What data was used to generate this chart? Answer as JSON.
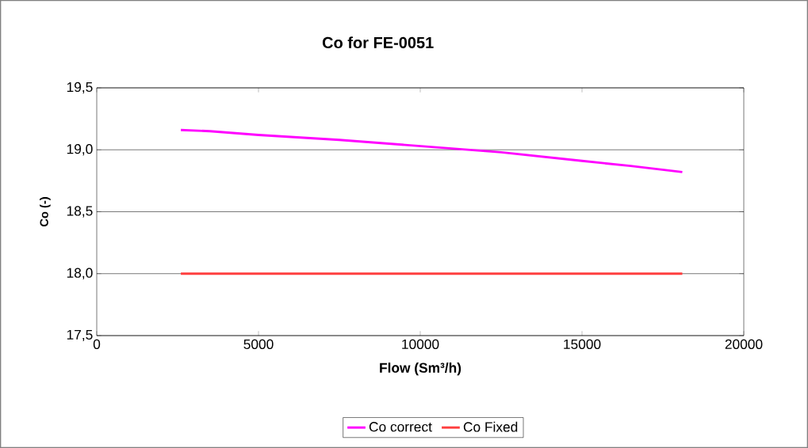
{
  "chart_data": {
    "type": "line",
    "title": "Co for FE-0051",
    "xlabel": "Flow (Sm³/h)",
    "ylabel": "Co (-)",
    "x": [
      2600,
      3500,
      5000,
      7500,
      10000,
      12500,
      15000,
      16500,
      18100
    ],
    "series": [
      {
        "name": "Co correct",
        "color": "#ff00ff",
        "values": [
          19.16,
          19.15,
          19.12,
          19.08,
          19.03,
          18.98,
          18.91,
          18.87,
          18.82
        ]
      },
      {
        "name": "Co Fixed",
        "color": "#ff3f3f",
        "values": [
          18.0,
          18.0,
          18.0,
          18.0,
          18.0,
          18.0,
          18.0,
          18.0,
          18.0
        ]
      }
    ],
    "xlim": [
      0,
      20000
    ],
    "xticks": [
      0,
      5000,
      10000,
      15000,
      20000
    ],
    "ylim": [
      17.5,
      19.5
    ],
    "yticks": [
      {
        "value": 17.5,
        "label": "17,5"
      },
      {
        "value": 18.0,
        "label": "18,0"
      },
      {
        "value": 18.5,
        "label": "18,5"
      },
      {
        "value": 19.0,
        "label": "19,0"
      },
      {
        "value": 19.5,
        "label": "19,5"
      }
    ],
    "grid": "y",
    "legend": "bottom",
    "marker": "none",
    "line_style": "solid"
  }
}
